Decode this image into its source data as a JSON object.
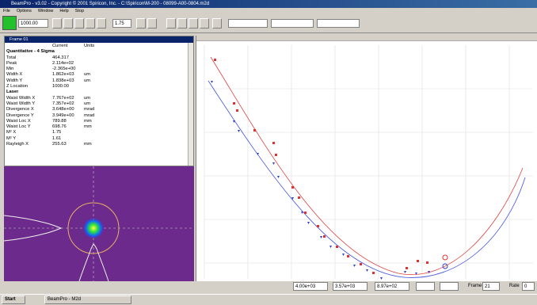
{
  "window": {
    "title": "BeamPro - v3.02 - Copyright © 2001 Spiricon, Inc. - C:\\Spiricon\\M-200 - 08099-A00-0804.m2d",
    "menu": [
      "File",
      "Options",
      "Window",
      "Help",
      "Stop"
    ],
    "toolbar": {
      "z_value": "1000.00",
      "m2_value": "1.75"
    }
  },
  "frame_panel": {
    "title": "Frame 01",
    "header": [
      "Current",
      "Units"
    ],
    "sections": [
      {
        "title": "Quantitative - 4 Sigma",
        "rows": [
          [
            "Total",
            "464.317",
            ""
          ],
          [
            "Peak",
            "2.114e+02",
            ""
          ],
          [
            "Min",
            "-2.365e+00",
            ""
          ],
          [
            "Width X",
            "1.862e+03",
            "um"
          ],
          [
            "Width Y",
            "1.838e+03",
            "um"
          ],
          [
            "Z Location",
            "1000.00",
            ""
          ]
        ]
      },
      {
        "title": "Laser",
        "rows": [
          [
            "Waist Width X",
            "7.767e+02",
            "um"
          ],
          [
            "Waist Width Y",
            "7.357e+02",
            "um"
          ],
          [
            "Divergence X",
            "3.648e+00",
            "mrad"
          ],
          [
            "Divergence Y",
            "3.949e+00",
            "mrad"
          ],
          [
            "Waist Loc X",
            "789.88",
            "mm"
          ],
          [
            "Waist Loc Y",
            "698.76",
            "mm"
          ],
          [
            "M² X",
            "1.75",
            ""
          ],
          [
            "M² Y",
            "1.61",
            ""
          ],
          [
            "Rayleigh X",
            "255.63",
            "mm"
          ]
        ]
      }
    ]
  },
  "status_fields": [
    "4.00e+03",
    "3.57e+03",
    "8.97e+02"
  ],
  "frame_label": "Frame",
  "frame_value": "21",
  "rate_label": "Rate",
  "rate_value": "0",
  "taskbar": {
    "start": "Start",
    "task": "BeamPro - M2d"
  }
}
